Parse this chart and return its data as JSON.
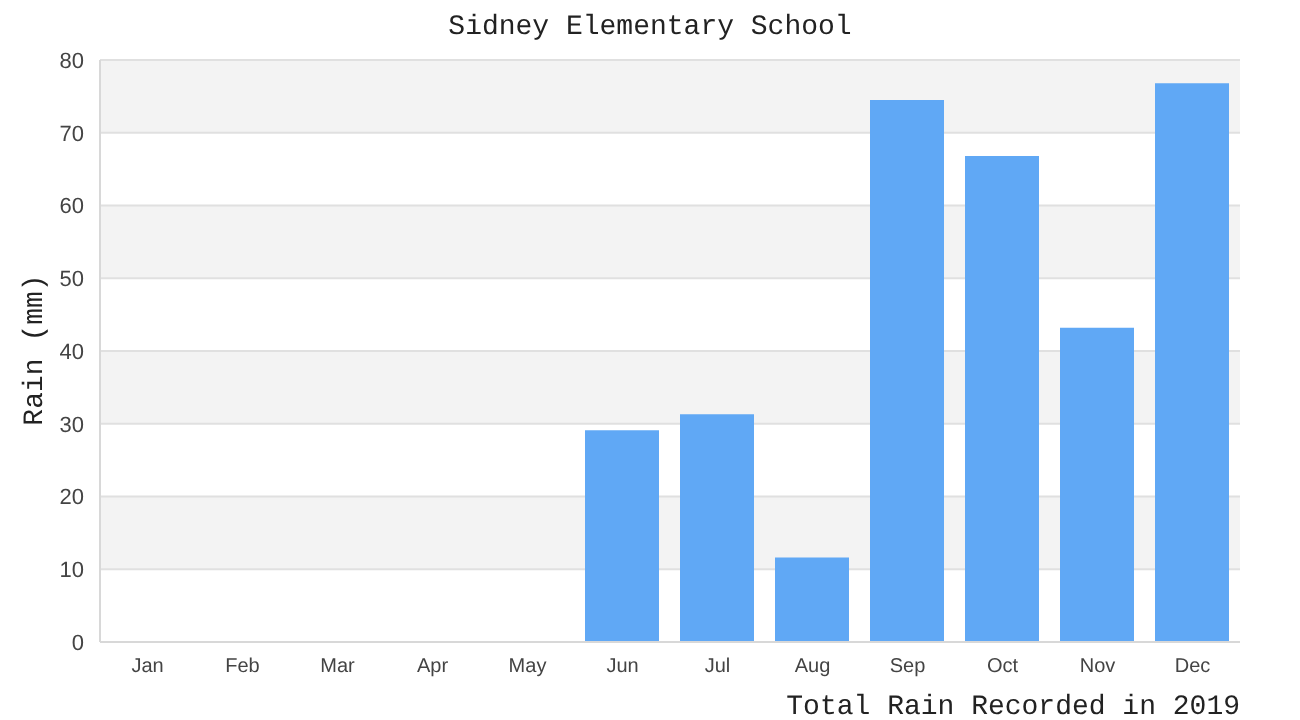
{
  "chart_data": {
    "type": "bar",
    "title": "Sidney Elementary School",
    "xlabel": "Total Rain Recorded in 2019",
    "ylabel": "Rain (mm)",
    "categories": [
      "Jan",
      "Feb",
      "Mar",
      "Apr",
      "May",
      "Jun",
      "Jul",
      "Aug",
      "Sep",
      "Oct",
      "Nov",
      "Dec"
    ],
    "values": [
      0,
      0,
      0,
      0,
      0,
      29.1,
      31.3,
      11.6,
      74.5,
      66.8,
      43.2,
      76.8
    ],
    "color": "#60a8f5",
    "ylim": [
      0,
      80
    ],
    "yticks": [
      0,
      10,
      20,
      30,
      40,
      50,
      60,
      70,
      80
    ],
    "grid": "y"
  }
}
